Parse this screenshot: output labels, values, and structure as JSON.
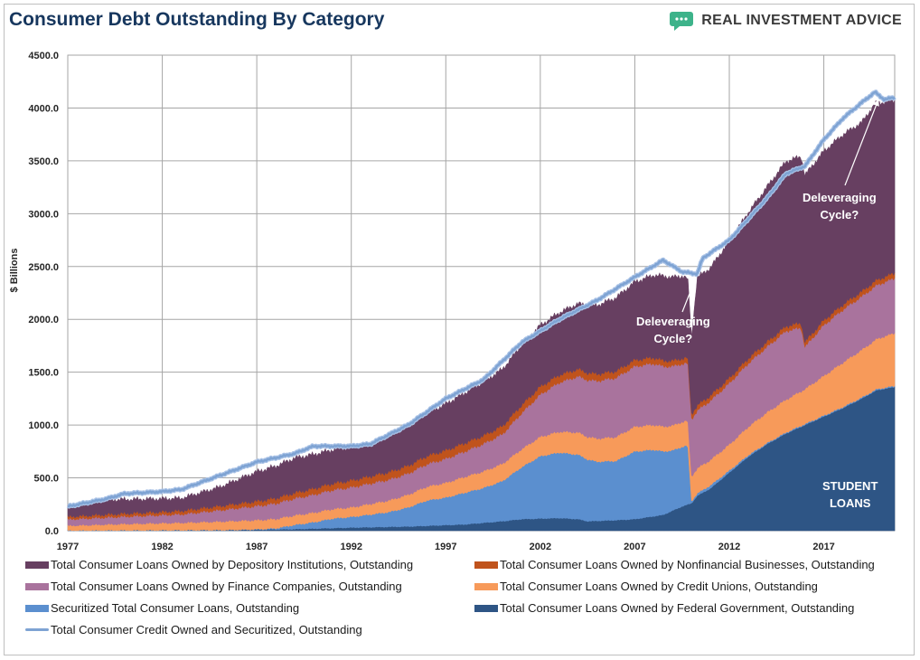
{
  "title": "Consumer Debt Outstanding By Category",
  "brand": {
    "name": "REAL INVESTMENT ADVICE",
    "icon": "chat-bubble-icon",
    "icon_color": "#3db38a"
  },
  "chart_data": {
    "type": "area",
    "stacked": true,
    "ylabel": "$ Billions",
    "ylim": [
      0,
      4500
    ],
    "yticks": [
      "0.0",
      "500.0",
      "1000.0",
      "1500.0",
      "2000.0",
      "2500.0",
      "3000.0",
      "3500.0",
      "4000.0",
      "4500.0"
    ],
    "xlim": [
      1977,
      2020.75
    ],
    "xticks": [
      "1977",
      "1982",
      "1987",
      "1992",
      "1997",
      "2002",
      "2007",
      "2012",
      "2017"
    ],
    "grid": true,
    "legend_position": "bottom",
    "series": [
      {
        "name": "Total Consumer Loans Owned by Federal Government, Outstanding",
        "color": "#2e5585",
        "points": [
          [
            1977,
            0
          ],
          [
            1985,
            5
          ],
          [
            1989,
            15
          ],
          [
            1992,
            30
          ],
          [
            1995,
            40
          ],
          [
            1998,
            60
          ],
          [
            2000,
            90
          ],
          [
            2001,
            110
          ],
          [
            2002,
            115
          ],
          [
            2003,
            120
          ],
          [
            2004,
            110
          ],
          [
            2004.5,
            90
          ],
          [
            2006,
            100
          ],
          [
            2007,
            110
          ],
          [
            2008.5,
            150
          ],
          [
            2009.5,
            230
          ],
          [
            2010,
            260
          ],
          [
            2010.3,
            330
          ],
          [
            2011,
            400
          ],
          [
            2012,
            550
          ],
          [
            2013,
            700
          ],
          [
            2014,
            820
          ],
          [
            2015,
            920
          ],
          [
            2016,
            1000
          ],
          [
            2017,
            1080
          ],
          [
            2018,
            1160
          ],
          [
            2019,
            1250
          ],
          [
            2019.8,
            1330
          ],
          [
            2020.75,
            1360
          ]
        ]
      },
      {
        "name": "Securitized Total Consumer Loans, Outstanding",
        "color": "#5b8fcf",
        "points": [
          [
            1977,
            0
          ],
          [
            1986,
            0
          ],
          [
            1987,
            3
          ],
          [
            1988,
            10
          ],
          [
            1989,
            40
          ],
          [
            1990,
            60
          ],
          [
            1991,
            90
          ],
          [
            1992,
            100
          ],
          [
            1993,
            120
          ],
          [
            1994,
            140
          ],
          [
            1995,
            180
          ],
          [
            1996,
            240
          ],
          [
            1997,
            260
          ],
          [
            1998,
            300
          ],
          [
            1999,
            330
          ],
          [
            2000,
            380
          ],
          [
            2001,
            490
          ],
          [
            2002,
            590
          ],
          [
            2003,
            620
          ],
          [
            2004,
            610
          ],
          [
            2005,
            560
          ],
          [
            2006,
            560
          ],
          [
            2007,
            640
          ],
          [
            2008,
            630
          ],
          [
            2009,
            570
          ],
          [
            2009.8,
            560
          ],
          [
            2010,
            20
          ],
          [
            2011,
            30
          ],
          [
            2012,
            20
          ],
          [
            2013,
            15
          ],
          [
            2014,
            10
          ],
          [
            2016,
            10
          ],
          [
            2018,
            10
          ],
          [
            2020.75,
            10
          ]
        ]
      },
      {
        "name": "Total Consumer Loans Owned by Credit Unions, Outstanding",
        "color": "#f79a5a",
        "points": [
          [
            1977,
            45
          ],
          [
            1980,
            60
          ],
          [
            1983,
            70
          ],
          [
            1986,
            85
          ],
          [
            1989,
            90
          ],
          [
            1992,
            90
          ],
          [
            1995,
            120
          ],
          [
            1998,
            150
          ],
          [
            2001,
            170
          ],
          [
            2004,
            210
          ],
          [
            2007,
            235
          ],
          [
            2009,
            235
          ],
          [
            2010,
            235
          ],
          [
            2012,
            245
          ],
          [
            2014,
            290
          ],
          [
            2016,
            330
          ],
          [
            2018,
            420
          ],
          [
            2020,
            480
          ],
          [
            2020.75,
            500
          ]
        ]
      },
      {
        "name": "Total Consumer Loans Owned by Finance Companies, Outstanding",
        "color": "#a9739d",
        "points": [
          [
            1977,
            60
          ],
          [
            1980,
            70
          ],
          [
            1983,
            80
          ],
          [
            1986,
            120
          ],
          [
            1989,
            160
          ],
          [
            1992,
            190
          ],
          [
            1995,
            200
          ],
          [
            1998,
            240
          ],
          [
            2000,
            280
          ],
          [
            2002,
            400
          ],
          [
            2004,
            530
          ],
          [
            2006,
            560
          ],
          [
            2008,
            580
          ],
          [
            2009,
            560
          ],
          [
            2010,
            540
          ],
          [
            2011,
            560
          ],
          [
            2012,
            580
          ],
          [
            2013,
            600
          ],
          [
            2014,
            620
          ],
          [
            2015,
            650
          ],
          [
            2015.8,
            600
          ],
          [
            2016,
            400
          ],
          [
            2017,
            480
          ],
          [
            2018,
            500
          ],
          [
            2020,
            510
          ],
          [
            2020.75,
            520
          ]
        ]
      },
      {
        "name": "Total Consumer Loans Owned by Nonfinancial Businesses, Outstanding",
        "color": "#c0531c",
        "points": [
          [
            1977,
            25
          ],
          [
            1982,
            30
          ],
          [
            1987,
            45
          ],
          [
            1992,
            65
          ],
          [
            1997,
            80
          ],
          [
            2002,
            75
          ],
          [
            2007,
            60
          ],
          [
            2010,
            50
          ],
          [
            2015,
            45
          ],
          [
            2020.75,
            50
          ]
        ]
      },
      {
        "name": "Total Consumer Loans Owned by Depository Institutions, Outstanding",
        "color": "#673f61",
        "points": [
          [
            1977,
            100
          ],
          [
            1979,
            140
          ],
          [
            1981,
            130
          ],
          [
            1983,
            120
          ],
          [
            1985,
            180
          ],
          [
            1987,
            280
          ],
          [
            1989,
            330
          ],
          [
            1991,
            320
          ],
          [
            1993,
            310
          ],
          [
            1995,
            370
          ],
          [
            1997,
            440
          ],
          [
            1999,
            510
          ],
          [
            2001,
            570
          ],
          [
            2003,
            590
          ],
          [
            2005,
            650
          ],
          [
            2007,
            740
          ],
          [
            2008.5,
            800
          ],
          [
            2009.5,
            780
          ],
          [
            2010,
            730
          ],
          [
            2010.3,
            1210
          ],
          [
            2011,
            1210
          ],
          [
            2012,
            1300
          ],
          [
            2013,
            1380
          ],
          [
            2014,
            1470
          ],
          [
            2015,
            1560
          ],
          [
            2016,
            1580
          ],
          [
            2017,
            1600
          ],
          [
            2018,
            1610
          ],
          [
            2019,
            1600
          ],
          [
            2019.7,
            1680
          ],
          [
            2020.75,
            1630
          ]
        ]
      },
      {
        "name": "Total Consumer Credit Owned and Securitized, Outstanding",
        "color": "#7ea3d3",
        "type": "line",
        "points": [
          [
            1977,
            230
          ],
          [
            1979,
            300
          ],
          [
            1980,
            350
          ],
          [
            1982,
            370
          ],
          [
            1983,
            390
          ],
          [
            1985,
            520
          ],
          [
            1987,
            650
          ],
          [
            1989,
            730
          ],
          [
            1990,
            800
          ],
          [
            1992,
            800
          ],
          [
            1993,
            820
          ],
          [
            1995,
            1000
          ],
          [
            1997,
            1250
          ],
          [
            1999,
            1430
          ],
          [
            2001,
            1780
          ],
          [
            2003,
            2000
          ],
          [
            2005,
            2180
          ],
          [
            2007,
            2400
          ],
          [
            2008.5,
            2560
          ],
          [
            2009.5,
            2450
          ],
          [
            2010.3,
            2430
          ],
          [
            2010.6,
            2580
          ],
          [
            2012,
            2750
          ],
          [
            2013,
            2950
          ],
          [
            2014,
            3150
          ],
          [
            2015,
            3380
          ],
          [
            2016,
            3450
          ],
          [
            2017,
            3700
          ],
          [
            2018,
            3900
          ],
          [
            2019,
            4050
          ],
          [
            2019.7,
            4150
          ],
          [
            2020.2,
            4080
          ],
          [
            2020.75,
            4100
          ]
        ]
      }
    ],
    "legend_order": [
      "Total Consumer Loans Owned by Depository Institutions, Outstanding",
      "Total Consumer Loans Owned by Nonfinancial Businesses, Outstanding",
      "Total Consumer Loans Owned by Finance Companies, Outstanding",
      "Total Consumer Loans Owned by Credit Unions, Outstanding",
      "Securitized Total Consumer Loans, Outstanding",
      "Total Consumer Loans Owned by Federal Government, Outstanding",
      "Total Consumer Credit Owned and Securitized, Outstanding"
    ],
    "annotations": [
      {
        "text": "Deleveraging\nCycle?",
        "points_to": [
          2010.3,
          2430
        ]
      },
      {
        "text": "Deleveraging\nCycle?",
        "points_to": [
          2019.7,
          4150
        ]
      },
      {
        "text": "STUDENT\nLOANS"
      }
    ]
  }
}
